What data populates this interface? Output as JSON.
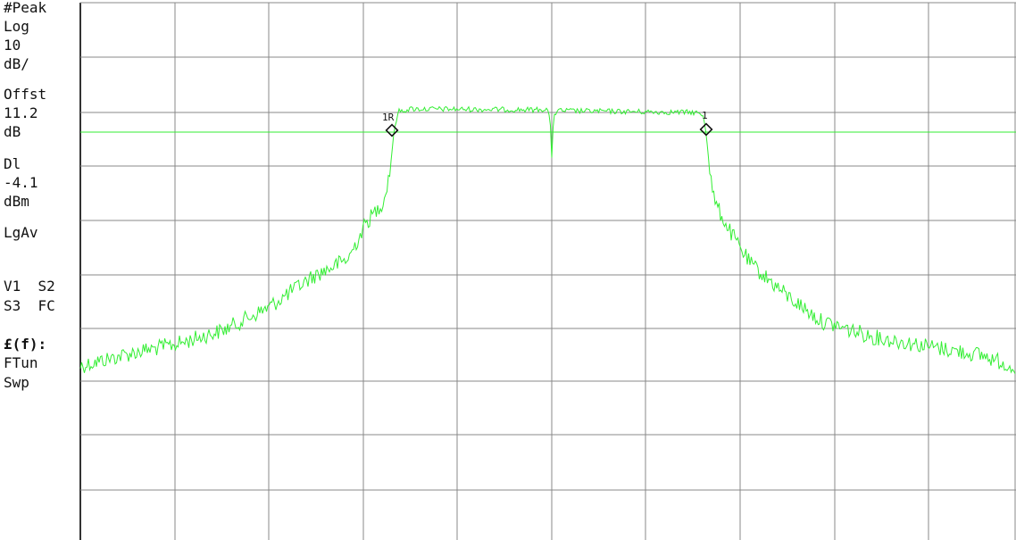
{
  "annotations": [
    {
      "id": "peak",
      "text": "#Peak"
    },
    {
      "id": "log",
      "text": "Log"
    },
    {
      "id": "scale",
      "text": "10"
    },
    {
      "id": "scale-unit",
      "text": "dB/"
    },
    {
      "id": "offst",
      "text": "Offst"
    },
    {
      "id": "offst-value",
      "text": "11.2"
    },
    {
      "id": "offst-unit",
      "text": "dB"
    },
    {
      "id": "dl",
      "text": "Dl"
    },
    {
      "id": "dl-value",
      "text": "-4.1"
    },
    {
      "id": "dl-unit",
      "text": "dBm"
    },
    {
      "id": "detector",
      "text": "LgAv"
    },
    {
      "id": "trace-v1s2",
      "text": "V1  S2"
    },
    {
      "id": "trace-s3fc",
      "text": "S3  FC"
    },
    {
      "id": "ef",
      "text": "£(f):"
    },
    {
      "id": "ftun",
      "text": "FTun"
    },
    {
      "id": "swp",
      "text": "Swp"
    }
  ],
  "markers": {
    "m1r_label": "1R",
    "m1_label": "1"
  },
  "colors": {
    "trace": "#33ee33",
    "display_line": "#33ee33",
    "grid": "#888888",
    "background": "#ffffff",
    "text": "#111111"
  }
}
